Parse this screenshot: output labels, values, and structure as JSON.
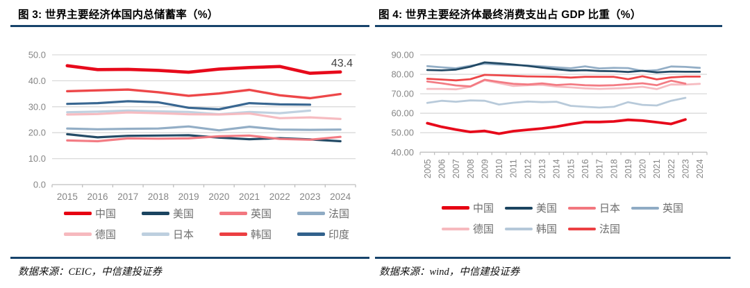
{
  "colors": {
    "title_rule": "#16436b",
    "grid": "#d9d9d9",
    "axis": "#bfbfbf",
    "tick_label": "#858585",
    "legend_label": "#6e6e6e",
    "annotation": "#404040"
  },
  "chart_data": [
    {
      "type": "line",
      "title": "图 3: 世界主要经济体国内总储蓄率（%）",
      "source": "数据来源：CEIC，中信建投证券",
      "x": [
        2015,
        2016,
        2017,
        2018,
        2019,
        2020,
        2021,
        2022,
        2023,
        2024
      ],
      "ylim": [
        0,
        50
      ],
      "yticks": [
        "0.0",
        "10.0",
        "20.0",
        "30.0",
        "40.0",
        "50.0"
      ],
      "grid": true,
      "legend_position": "bottom",
      "legend_rows": [
        [
          "中国",
          "美国",
          "英国",
          "法国"
        ],
        [
          "德国",
          "日本",
          "韩国",
          "印度"
        ]
      ],
      "annotation": {
        "text": "43.4",
        "series": "中国",
        "position": "end-top-right"
      },
      "draw_order": [
        "日本",
        "德国",
        "法国",
        "印度",
        "美国",
        "英国",
        "韩国",
        "中国"
      ],
      "series": [
        {
          "name": "中国",
          "color": "#e60012",
          "width": 4.6,
          "values": [
            45.8,
            44.3,
            44.4,
            44.0,
            43.3,
            44.5,
            45.1,
            45.5,
            42.9,
            43.4
          ]
        },
        {
          "name": "美国",
          "color": "#1b4460",
          "width": 3.2,
          "values": [
            19.4,
            18.2,
            18.8,
            18.9,
            19.0,
            18.1,
            17.5,
            17.9,
            17.4,
            16.7
          ]
        },
        {
          "name": "英国",
          "color": "#f2777f",
          "width": 3.2,
          "values": [
            17.0,
            16.7,
            17.8,
            17.7,
            17.8,
            18.6,
            18.9,
            17.6,
            17.3,
            18.4
          ]
        },
        {
          "name": "法国",
          "color": "#8fabc4",
          "width": 3.2,
          "values": [
            21.6,
            21.3,
            21.5,
            21.6,
            22.4,
            20.9,
            22.3,
            21.2,
            21.1,
            21.2
          ]
        },
        {
          "name": "德国",
          "color": "#f6b9be",
          "width": 3.2,
          "values": [
            27.0,
            27.2,
            27.8,
            27.5,
            27.1,
            27.0,
            27.4,
            25.6,
            25.9,
            25.3
          ]
        },
        {
          "name": "日本",
          "color": "#bdcfdf",
          "width": 3.2,
          "values": [
            27.9,
            28.1,
            28.5,
            28.2,
            28.0,
            27.1,
            28.0,
            27.5,
            28.5
          ]
        },
        {
          "name": "韩国",
          "color": "#ec3f42",
          "width": 3.4,
          "values": [
            36.0,
            36.3,
            36.6,
            35.6,
            34.2,
            35.1,
            36.5,
            34.4,
            33.3,
            34.9
          ]
        },
        {
          "name": "印度",
          "color": "#31618c",
          "width": 3.2,
          "values": [
            31.1,
            31.4,
            32.1,
            31.7,
            29.6,
            29.0,
            31.4,
            30.9,
            30.8
          ]
        }
      ]
    },
    {
      "type": "line",
      "title": "图 4: 世界主要经济体最终消费支出占 GDP 比重（%）",
      "source": "数据来源：wind，中信建投证券",
      "x": [
        2005,
        2006,
        2007,
        2008,
        2009,
        2010,
        2011,
        2012,
        2013,
        2014,
        2015,
        2016,
        2017,
        2018,
        2019,
        2020,
        2021,
        2022,
        2023,
        2024
      ],
      "ylim": [
        40,
        90
      ],
      "yticks": [
        "40.00",
        "50.00",
        "60.00",
        "70.00",
        "80.00",
        "90.00"
      ],
      "grid": true,
      "legend_position": "bottom",
      "xlabel_rotated": true,
      "legend_rows": [
        [
          "中国",
          "美国",
          "日本",
          "英国"
        ],
        [
          "德国",
          "韩国",
          "法国"
        ]
      ],
      "draw_order": [
        "韩国",
        "德国",
        "日本",
        "英国",
        "美国",
        "法国",
        "中国"
      ],
      "series": [
        {
          "name": "中国",
          "color": "#e60012",
          "width": 3.8,
          "values": [
            54.9,
            53.0,
            51.6,
            50.4,
            50.9,
            49.5,
            50.8,
            51.5,
            52.2,
            53.1,
            54.4,
            55.5,
            55.5,
            55.8,
            56.6,
            56.2,
            55.4,
            54.5,
            56.8
          ]
        },
        {
          "name": "美国",
          "color": "#1b4460",
          "width": 2.8,
          "values": [
            82.2,
            82.0,
            82.4,
            83.9,
            86.1,
            85.6,
            85.0,
            84.3,
            83.4,
            82.6,
            81.9,
            82.1,
            81.7,
            81.6,
            81.2,
            81.8,
            81.0,
            81.4,
            81.3,
            81.3
          ]
        },
        {
          "name": "日本",
          "color": "#f2777f",
          "width": 2.8,
          "values": [
            76.3,
            75.4,
            74.3,
            73.8,
            77.2,
            76.1,
            75.1,
            74.8,
            75.3,
            74.5,
            74.9,
            74.4,
            74.2,
            74.4,
            74.9,
            75.4,
            74.4,
            76.7,
            75.2
          ]
        },
        {
          "name": "英国",
          "color": "#8fabc4",
          "width": 2.8,
          "values": [
            84.2,
            83.6,
            83.1,
            84.4,
            85.4,
            85.0,
            84.7,
            84.5,
            84.1,
            83.6,
            83.1,
            84.1,
            83.0,
            83.3,
            83.2,
            81.7,
            82.1,
            84.0,
            83.8,
            83.3
          ]
        },
        {
          "name": "德国",
          "color": "#f6b9be",
          "width": 2.8,
          "values": [
            72.5,
            72.5,
            72.3,
            73.6,
            76.9,
            75.5,
            74.0,
            74.4,
            74.6,
            73.7,
            73.3,
            72.8,
            72.5,
            72.7,
            73.0,
            73.6,
            72.4,
            74.8,
            74.7,
            75.1
          ]
        },
        {
          "name": "韩国",
          "color": "#b5c8d9",
          "width": 2.8,
          "values": [
            65.3,
            66.4,
            65.9,
            66.6,
            66.4,
            64.5,
            65.4,
            66.0,
            65.7,
            65.9,
            63.8,
            63.3,
            62.9,
            63.3,
            65.7,
            64.3,
            64.0,
            66.4,
            67.9
          ]
        },
        {
          "name": "法国",
          "color": "#ec3f42",
          "width": 2.8,
          "values": [
            77.7,
            77.3,
            76.9,
            77.5,
            79.7,
            79.5,
            79.2,
            78.9,
            78.8,
            78.7,
            78.3,
            78.7,
            78.7,
            78.7,
            77.5,
            79.0,
            77.4,
            78.4,
            78.8,
            78.8
          ]
        }
      ]
    }
  ]
}
